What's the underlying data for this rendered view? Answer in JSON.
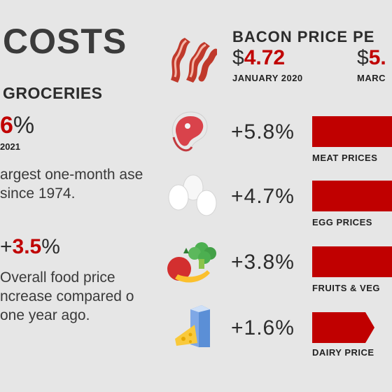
{
  "left": {
    "title": "COSTS",
    "subtitle": "GROCERIES",
    "big_stat_prefix": "",
    "big_stat_value": "6",
    "big_stat_suffix": "%",
    "big_stat_date": "2021",
    "desc1": "argest one-month ase since 1974.",
    "food_prefix": "+",
    "food_value": "3.5",
    "food_suffix": "%",
    "desc2": "Overall food price ncrease compared o one year ago."
  },
  "bacon": {
    "title": "BACON PRICE PE",
    "price1_dollar": "$",
    "price1_value": "4.72",
    "price1_label": "JANUARY 2020",
    "price2_dollar": "$",
    "price2_value": "5.",
    "price2_label": "MARC"
  },
  "categories": [
    {
      "value": "+5.8%",
      "label": "MEAT PRICES",
      "icon": "steak-icon"
    },
    {
      "value": "+4.7%",
      "label": "EGG PRICES",
      "icon": "eggs-icon"
    },
    {
      "value": "+3.8%",
      "label": "FRUITS & VEG",
      "icon": "fruits-vegetables-icon"
    },
    {
      "value": "+1.6%",
      "label": "DAIRY PRICE",
      "icon": "dairy-icon"
    }
  ],
  "colors": {
    "accent": "#c00000",
    "background": "#e6e6e6",
    "text": "#2f2f2f"
  }
}
